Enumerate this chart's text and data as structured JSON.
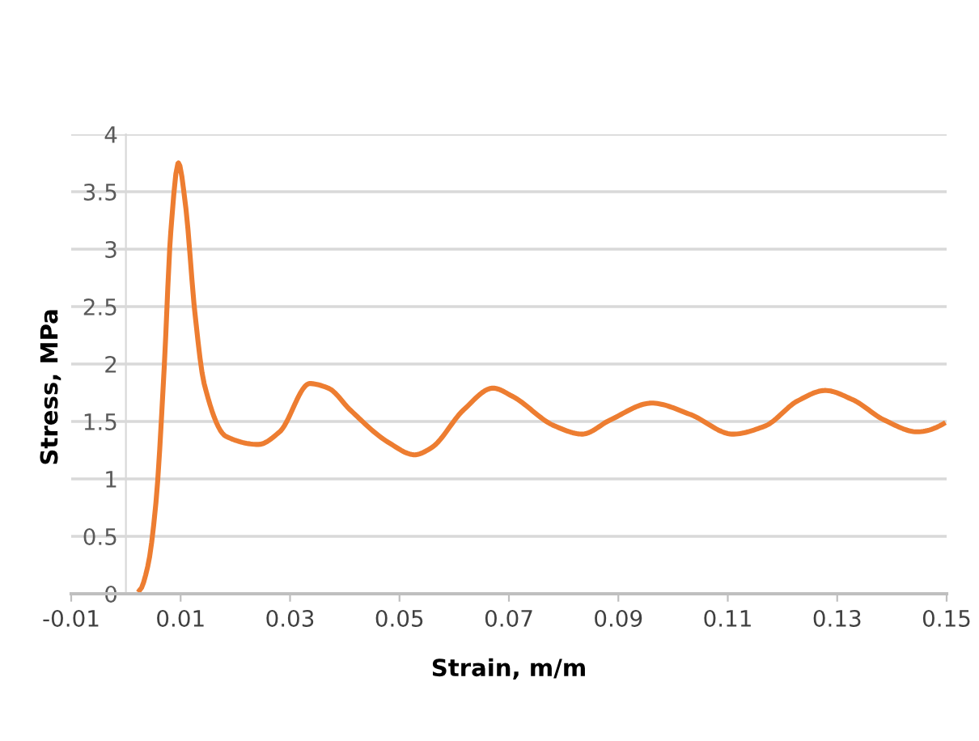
{
  "chart_data": {
    "type": "line",
    "xlabel": "Strain, m/m",
    "ylabel": "Stress, MPa",
    "xlim": [
      -0.01,
      0.15
    ],
    "xticks": [
      -0.01,
      0.01,
      0.03,
      0.05,
      0.07,
      0.09,
      0.11,
      0.13,
      0.15
    ],
    "ylim": [
      0,
      4
    ],
    "yticks": [
      0,
      0.5,
      1,
      1.5,
      2,
      2.5,
      3,
      3.5,
      4
    ],
    "grid": "y",
    "legend": false,
    "marker": "none",
    "line_style": "solid",
    "series": [
      {
        "color": "#ed7d31",
        "x": [
          0.0025,
          0.004,
          0.0055,
          0.007,
          0.0082,
          0.0096,
          0.0109,
          0.0126,
          0.0143,
          0.0183,
          0.0242,
          0.0281,
          0.0336,
          0.037,
          0.041,
          0.0479,
          0.0528,
          0.0558,
          0.0617,
          0.0671,
          0.0706,
          0.0784,
          0.0834,
          0.0884,
          0.0961,
          0.1032,
          0.1109,
          0.1168,
          0.1228,
          0.1278,
          0.1328,
          0.1387,
          0.1446,
          0.1494
        ],
        "values": [
          0.03,
          0.24,
          0.8,
          1.97,
          3.15,
          3.75,
          3.38,
          2.45,
          1.83,
          1.37,
          1.3,
          1.41,
          1.83,
          1.79,
          1.6,
          1.32,
          1.21,
          1.27,
          1.6,
          1.79,
          1.72,
          1.46,
          1.39,
          1.51,
          1.66,
          1.56,
          1.39,
          1.46,
          1.68,
          1.77,
          1.69,
          1.51,
          1.41,
          1.48
        ]
      }
    ]
  }
}
